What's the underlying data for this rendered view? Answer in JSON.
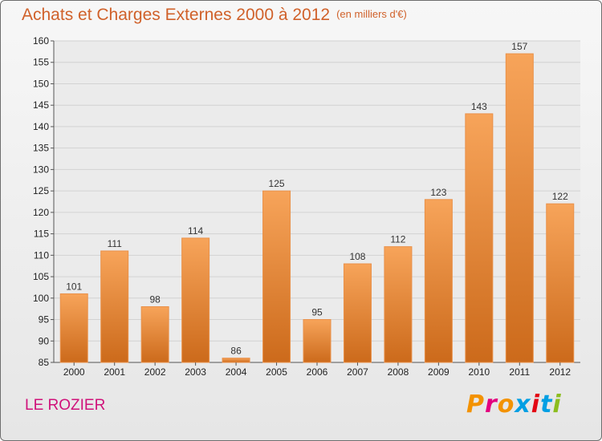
{
  "chart_data": {
    "type": "bar",
    "title": "Achats et Charges Externes 2000 à 2012",
    "subtitle": "(en milliers d'€)",
    "categories": [
      "2000",
      "2001",
      "2002",
      "2003",
      "2004",
      "2005",
      "2006",
      "2007",
      "2008",
      "2009",
      "2010",
      "2011",
      "2012"
    ],
    "values": [
      101,
      111,
      98,
      114,
      86,
      125,
      95,
      108,
      112,
      123,
      143,
      157,
      122
    ],
    "ylim": [
      85,
      160
    ],
    "yticks": [
      85,
      90,
      95,
      100,
      105,
      110,
      115,
      120,
      125,
      130,
      135,
      140,
      145,
      150,
      155,
      160
    ],
    "grid": true,
    "bar_color_top": "#f7a45a",
    "bar_color_bottom": "#cc6a1b",
    "grid_color": "#d2d2d2"
  },
  "footer": {
    "commune": "LE ROZIER",
    "logo": "Proxiti",
    "logo_colors": [
      "#f39200",
      "#e3007e",
      "#f39200",
      "#009fe3",
      "#e30613",
      "#009fe3",
      "#8cbd1f"
    ]
  }
}
